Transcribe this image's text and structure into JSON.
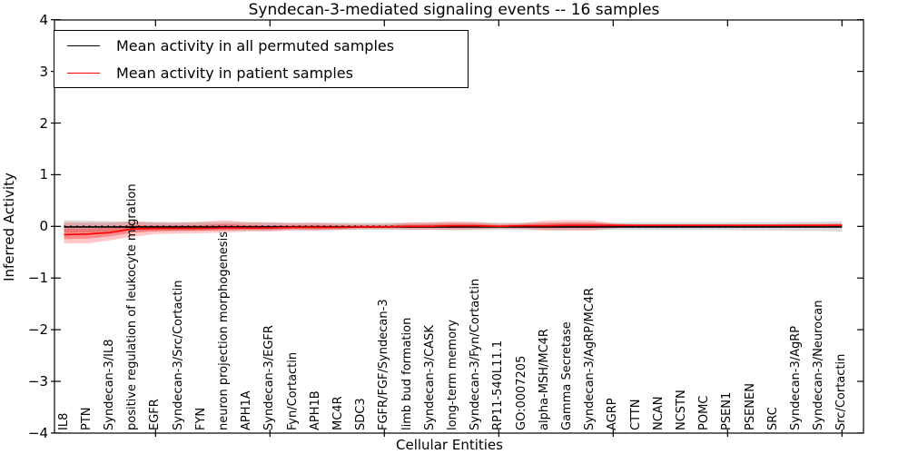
{
  "figure": {
    "background": "#ffffff"
  },
  "legend": {
    "entries": [
      {
        "label": "Mean activity in all permuted samples",
        "color": "#000000"
      },
      {
        "label": "Mean activity in patient samples",
        "color": "#ff0000"
      }
    ]
  },
  "chart_data": {
    "type": "line",
    "title": "Syndecan-3-mediated signaling events -- 16 samples",
    "xlabel": "Cellular Entities",
    "ylabel": "Inferred Activity",
    "ylim": [
      -4,
      4
    ],
    "y_ticks": [
      -4,
      -3,
      -2,
      -1,
      0,
      1,
      2,
      3,
      4
    ],
    "y_tick_labels": [
      "−4",
      "−3",
      "−2",
      "−1",
      "0",
      "1",
      "2",
      "3",
      "4"
    ],
    "grid": false,
    "legend_position": "upper left",
    "categories": [
      "IL8",
      "PTN",
      "Syndecan-3/IL8",
      "positive regulation of leukocyte migration",
      "EGFR",
      "Syndecan-3/Src/Cortactin",
      "FYN",
      "neuron projection morphogenesis",
      "APH1A",
      "Syndecan-3/EGFR",
      "Fyn/Cortactin",
      "APH1B",
      "MC4R",
      "SDC3",
      "FGFR/FGF/Syndecan-3",
      "limb bud formation",
      "Syndecan-3/CASK",
      "long-term memory",
      "Syndecan-3/Fyn/Cortactin",
      "RP11-540L11.1",
      "GO:0007205",
      "alpha-MSH/MC4R",
      "Gamma Secretase",
      "Syndecan-3/AgRP/MC4R",
      "AGRP",
      "CTTN",
      "NCAN",
      "NCSTN",
      "POMC",
      "PSEN1",
      "PSENEN",
      "SRC",
      "Syndecan-3/AgRP",
      "Syndecan-3/Neurocan",
      "Src/Cortactin"
    ],
    "zero_reference_line": {
      "value": 0,
      "style": "dotted",
      "color": "#000000"
    },
    "series": [
      {
        "key": "permuted-mean-line",
        "name": "Mean activity in all permuted samples",
        "color": "#000000",
        "style": "solid",
        "values": [
          -0.01,
          -0.01,
          -0.01,
          -0.01,
          -0.01,
          -0.01,
          -0.01,
          -0.01,
          -0.01,
          -0.01,
          -0.01,
          -0.01,
          -0.01,
          -0.01,
          -0.01,
          -0.01,
          -0.01,
          -0.01,
          -0.01,
          -0.01,
          -0.01,
          -0.01,
          -0.01,
          -0.01,
          -0.01,
          -0.01,
          -0.01,
          -0.01,
          -0.01,
          -0.01,
          -0.01,
          -0.01,
          -0.01,
          -0.01,
          -0.01
        ]
      },
      {
        "key": "patient-mean-line",
        "name": "Mean activity in patient samples",
        "color": "#ff0000",
        "style": "solid",
        "values": [
          -0.16,
          -0.15,
          -0.12,
          -0.05,
          -0.04,
          -0.04,
          -0.04,
          -0.03,
          -0.03,
          -0.03,
          -0.02,
          -0.02,
          -0.02,
          -0.01,
          -0.01,
          0.0,
          0.0,
          0.01,
          0.01,
          0.0,
          0.01,
          0.01,
          0.02,
          0.02,
          0.02,
          0.02,
          0.02,
          0.02,
          0.02,
          0.02,
          0.02,
          0.02,
          0.02,
          0.02,
          0.02
        ]
      }
    ],
    "bands": [
      {
        "key": "permuted-range-band",
        "color": "rgba(0,0,0,0.15)",
        "upper": [
          0.12,
          0.11,
          0.1,
          0.09,
          0.09,
          0.08,
          0.08,
          0.08,
          0.08,
          0.08,
          0.07,
          0.07,
          0.07,
          0.07,
          0.07,
          0.07,
          0.07,
          0.07,
          0.07,
          0.07,
          0.07,
          0.07,
          0.07,
          0.07,
          0.07,
          0.07,
          0.07,
          0.07,
          0.07,
          0.07,
          0.08,
          0.08,
          0.09,
          0.09,
          0.1
        ],
        "lower": [
          -0.12,
          -0.11,
          -0.1,
          -0.09,
          -0.09,
          -0.08,
          -0.08,
          -0.08,
          -0.08,
          -0.08,
          -0.07,
          -0.07,
          -0.07,
          -0.07,
          -0.07,
          -0.07,
          -0.07,
          -0.07,
          -0.07,
          -0.07,
          -0.07,
          -0.07,
          -0.07,
          -0.07,
          -0.07,
          -0.07,
          -0.07,
          -0.07,
          -0.07,
          -0.07,
          -0.08,
          -0.08,
          -0.09,
          -0.09,
          -0.1
        ]
      },
      {
        "key": "patient-range-outer-band",
        "color": "rgba(255,0,0,0.22)",
        "upper": [
          0.08,
          0.07,
          0.07,
          0.1,
          0.07,
          0.07,
          0.09,
          0.12,
          0.08,
          0.07,
          0.06,
          0.07,
          0.05,
          0.04,
          0.04,
          0.07,
          0.08,
          0.1,
          0.09,
          0.05,
          0.06,
          0.11,
          0.12,
          0.12,
          0.06,
          0.04,
          0.04,
          0.04,
          0.04,
          0.04,
          0.04,
          0.04,
          0.05,
          0.05,
          0.06
        ],
        "lower": [
          -0.33,
          -0.33,
          -0.27,
          -0.2,
          -0.15,
          -0.14,
          -0.13,
          -0.12,
          -0.1,
          -0.1,
          -0.08,
          -0.09,
          -0.07,
          -0.05,
          -0.05,
          -0.06,
          -0.06,
          -0.07,
          -0.06,
          -0.04,
          -0.05,
          -0.08,
          -0.08,
          -0.08,
          -0.04,
          -0.01,
          -0.01,
          -0.01,
          -0.01,
          -0.01,
          -0.01,
          -0.01,
          -0.01,
          -0.01,
          -0.02
        ]
      },
      {
        "key": "patient-range-inner-band",
        "color": "rgba(255,0,0,0.30)",
        "upper": [
          -0.04,
          -0.04,
          -0.025,
          0.025,
          0.015,
          0.015,
          0.025,
          0.045,
          0.025,
          0.02,
          0.02,
          0.025,
          0.015,
          0.015,
          0.015,
          0.035,
          0.04,
          0.055,
          0.05,
          0.025,
          0.035,
          0.06,
          0.07,
          0.07,
          0.04,
          0.03,
          0.03,
          0.03,
          0.03,
          0.03,
          0.03,
          0.03,
          0.035,
          0.035,
          0.04
        ],
        "lower": [
          -0.245,
          -0.24,
          -0.195,
          -0.125,
          -0.095,
          -0.09,
          -0.085,
          -0.075,
          -0.065,
          -0.065,
          -0.05,
          -0.055,
          -0.045,
          -0.03,
          -0.03,
          -0.03,
          -0.03,
          -0.03,
          -0.025,
          -0.02,
          -0.02,
          -0.035,
          -0.03,
          -0.03,
          -0.01,
          0.005,
          0.005,
          0.005,
          0.005,
          0.005,
          0.005,
          0.005,
          0.005,
          0.005,
          0.0
        ]
      }
    ]
  }
}
